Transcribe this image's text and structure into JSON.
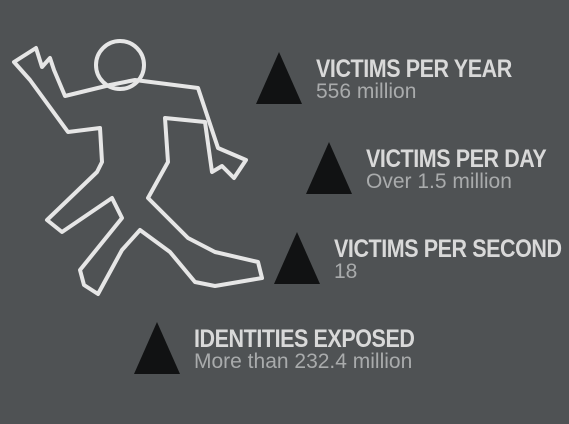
{
  "stats": [
    {
      "label": "VICTIMS PER YEAR",
      "value": "556 million"
    },
    {
      "label": "VICTIMS PER DAY",
      "value": "Over 1.5 million"
    },
    {
      "label": "VICTIMS PER SECOND",
      "value": "18"
    },
    {
      "label": "IDENTITIES EXPOSED",
      "value": "More than 232.4 million"
    }
  ],
  "colors": {
    "background": "#4f5254",
    "label": "#d9d9d9",
    "value": "#a9abac",
    "triangle": "#111213",
    "outline": "#e6e6e6"
  }
}
